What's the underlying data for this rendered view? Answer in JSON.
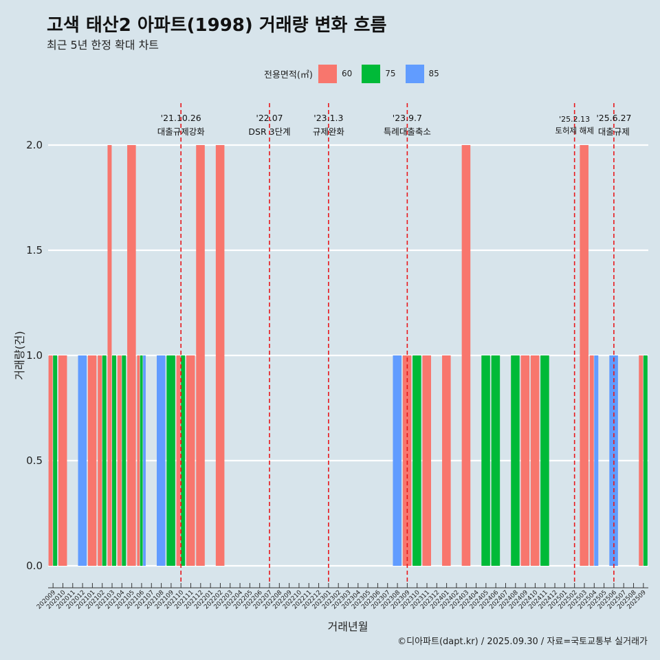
{
  "chart_data": {
    "type": "bar",
    "title": "고색 태산2 아파트(1998) 거래량 변화 흐름",
    "subtitle": "최근 5년 한정 확대 차트",
    "xlabel": "거래년월",
    "ylabel": "거래량(건)",
    "caption": "©디아파트(dapt.kr) / 2025.09.30 / 자료=국토교통부 실거래가",
    "legend_title": "전용면적(㎡)",
    "ylim": [
      0,
      2
    ],
    "yticks": [
      "0.0",
      "0.5",
      "1.0",
      "1.5",
      "2.0"
    ],
    "colors": {
      "60": "#f8766d",
      "75": "#00ba38",
      "85": "#619cff"
    },
    "categories": [
      "202009",
      "202010",
      "202011",
      "202012",
      "202101",
      "202102",
      "202103",
      "202104",
      "202105",
      "202106",
      "202107",
      "202108",
      "202109",
      "202110",
      "202111",
      "202112",
      "202201",
      "202202",
      "202203",
      "202204",
      "202205",
      "202206",
      "202207",
      "202208",
      "202209",
      "202210",
      "202211",
      "202212",
      "202301",
      "202302",
      "202303",
      "202304",
      "202305",
      "202306",
      "202307",
      "202308",
      "202309",
      "202310",
      "202311",
      "202312",
      "202401",
      "202402",
      "202403",
      "202404",
      "202405",
      "202406",
      "202407",
      "202408",
      "202409",
      "202410",
      "202411",
      "202412",
      "202501",
      "202502",
      "202503",
      "202504",
      "202505",
      "202506",
      "202507",
      "202508",
      "202509"
    ],
    "series": [
      {
        "name": "60",
        "values": [
          1,
          1,
          0,
          0,
          1,
          1,
          2,
          1,
          2,
          1,
          0,
          0,
          0,
          1,
          1,
          2,
          0,
          2,
          0,
          0,
          0,
          0,
          0,
          0,
          0,
          0,
          0,
          0,
          0,
          0,
          0,
          0,
          0,
          0,
          0,
          0,
          1,
          0,
          1,
          0,
          1,
          0,
          2,
          0,
          0,
          0,
          0,
          0,
          1,
          1,
          0,
          0,
          0,
          0,
          2,
          1,
          0,
          0,
          0,
          0,
          1
        ]
      },
      {
        "name": "75",
        "values": [
          1,
          0,
          0,
          0,
          0,
          1,
          1,
          1,
          0,
          1,
          0,
          0,
          1,
          1,
          0,
          0,
          0,
          0,
          0,
          0,
          0,
          0,
          0,
          0,
          0,
          0,
          0,
          0,
          0,
          0,
          0,
          0,
          0,
          0,
          0,
          0,
          0,
          1,
          0,
          0,
          0,
          0,
          0,
          0,
          1,
          1,
          0,
          1,
          0,
          0,
          1,
          0,
          0,
          0,
          0,
          0,
          0,
          0,
          0,
          0,
          1
        ]
      },
      {
        "name": "85",
        "values": [
          0,
          0,
          0,
          1,
          0,
          0,
          0,
          0,
          0,
          1,
          0,
          1,
          0,
          0,
          0,
          0,
          0,
          0,
          0,
          0,
          0,
          0,
          0,
          0,
          0,
          0,
          0,
          0,
          0,
          0,
          0,
          0,
          0,
          0,
          0,
          1,
          0,
          0,
          0,
          0,
          0,
          0,
          0,
          0,
          0,
          0,
          0,
          0,
          0,
          0,
          0,
          0,
          0,
          0,
          0,
          1,
          0,
          1,
          0,
          0,
          0
        ]
      }
    ],
    "events": [
      {
        "date": "'21.10.26",
        "label": "대출규제강화",
        "x": "202110"
      },
      {
        "date": "'22.07",
        "label": "DSR 3단계",
        "x": "202207"
      },
      {
        "date": "'23.1.3",
        "label": "규제완화",
        "x": "202301"
      },
      {
        "date": "'23.9.7",
        "label": "특례대출축소",
        "x": "202309"
      },
      {
        "date": "'25.2.13",
        "label": "토허제 해제",
        "x": "202502"
      },
      {
        "date": "'25.6.27",
        "label": "대출규제",
        "x": "202506"
      }
    ]
  }
}
